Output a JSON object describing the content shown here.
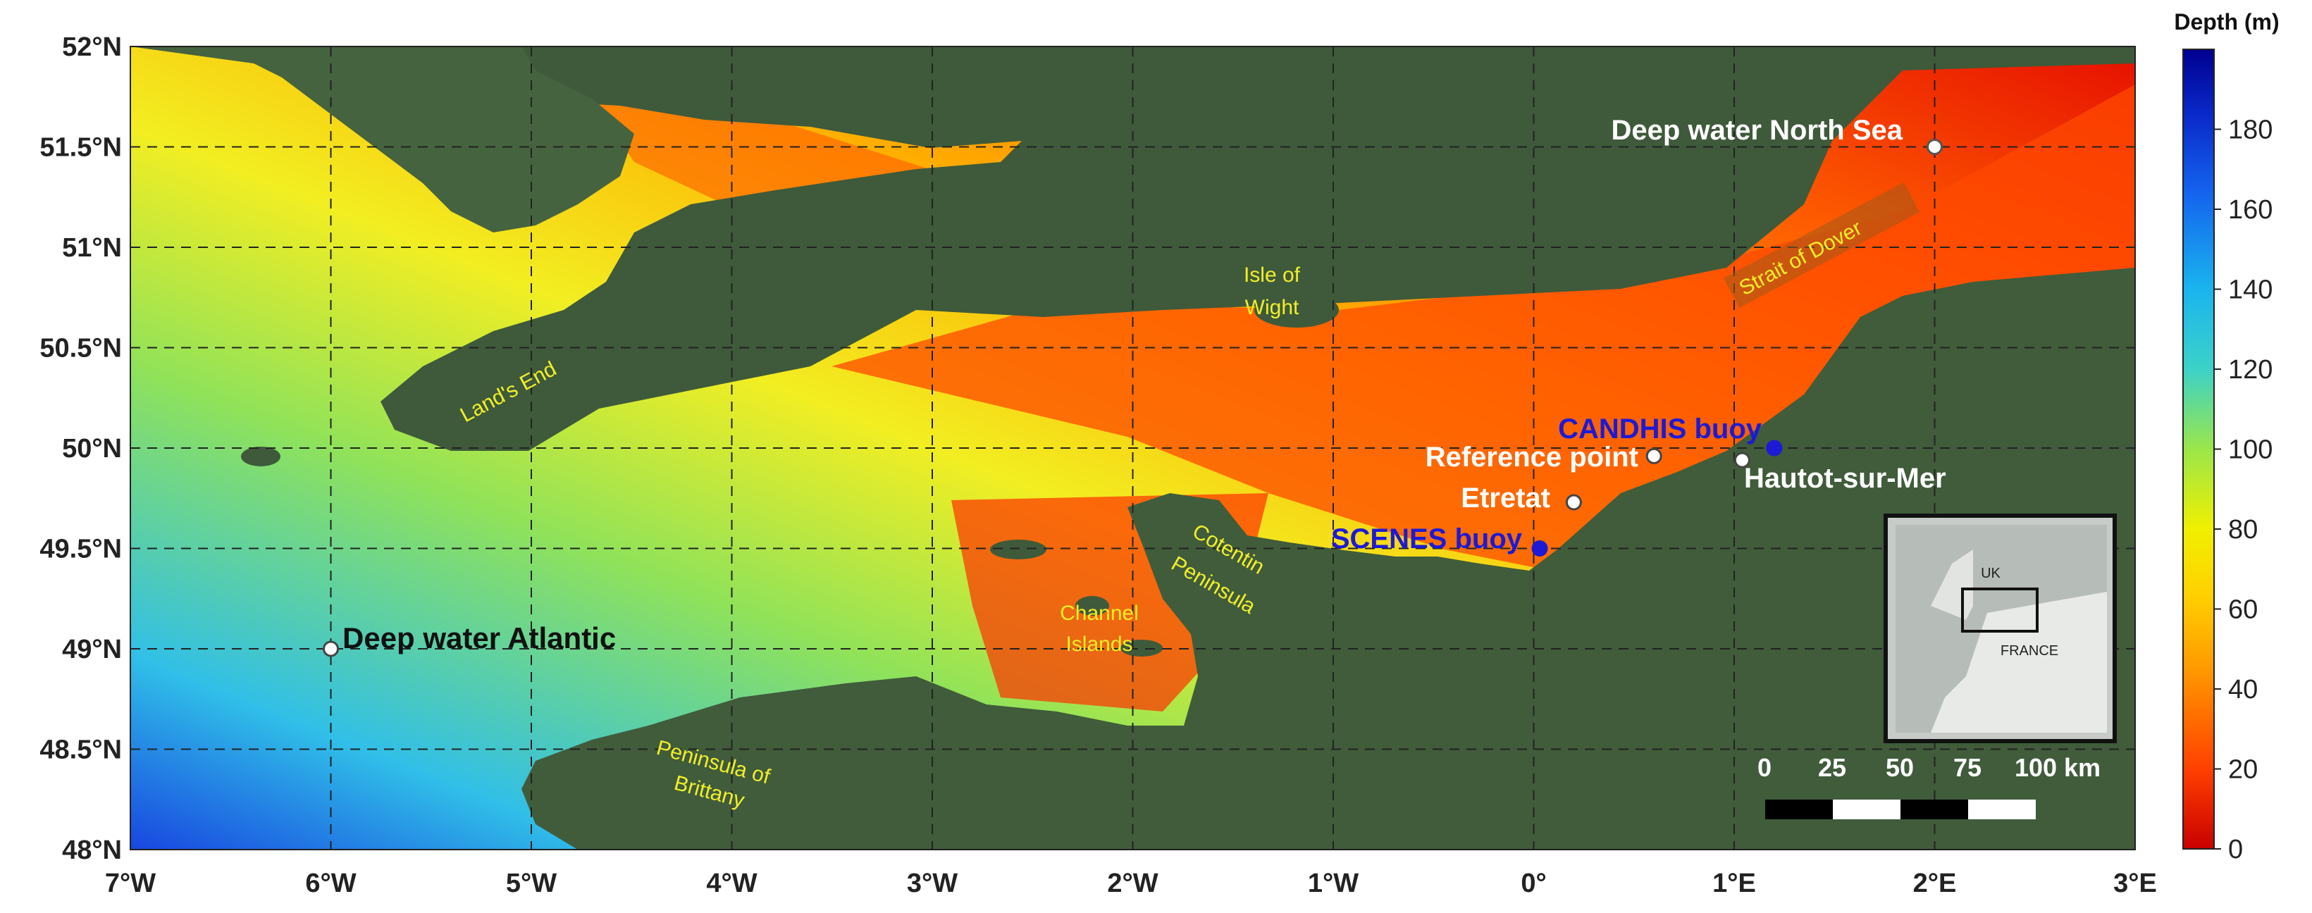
{
  "map": {
    "axes": {
      "x_ticks": [
        "7°W",
        "6°W",
        "5°W",
        "4°W",
        "3°W",
        "2°W",
        "1°W",
        "0°",
        "1°E",
        "2°E",
        "3°E"
      ],
      "y_ticks": [
        "52°N",
        "51.5°N",
        "51°N",
        "50.5°N",
        "50°N",
        "49.5°N",
        "49°N",
        "48.5°N",
        "48°N"
      ],
      "lon_range": [
        -7,
        3
      ],
      "lat_range": [
        48,
        52
      ]
    },
    "colorbar": {
      "title": "Depth (m)",
      "ticks": [
        "0",
        "20",
        "40",
        "60",
        "80",
        "100",
        "120",
        "140",
        "160",
        "180"
      ],
      "range": [
        0,
        200
      ],
      "colors": [
        "#d40000",
        "#ff5a00",
        "#ffb400",
        "#f0f000",
        "#9be64a",
        "#3cd2c8",
        "#1aa0ee",
        "#1464ee",
        "#0a1eb4",
        "#000080"
      ]
    },
    "geo_labels": {
      "lands_end": "Land's End",
      "isle_of_wight_1": "Isle of",
      "isle_of_wight_2": "Wight",
      "strait_of_dover": "Strait of Dover",
      "cotentin_1": "Cotentin",
      "cotentin_2": "Peninsula",
      "channel_islands_1": "Channel",
      "channel_islands_2": "Islands",
      "brittany_1": "Peninsula of",
      "brittany_2": "Brittany"
    },
    "points": {
      "deep_water_north_sea": {
        "label": "Deep water North Sea",
        "lon": 2.0,
        "lat": 51.5
      },
      "candhis_buoy": {
        "label": "CANDHIS buoy",
        "lon": 1.2,
        "lat": 50.0
      },
      "reference_point": {
        "label": "Reference point",
        "lon": 0.6,
        "lat": 49.96
      },
      "hautot_sur_mer": {
        "label": "Hautot-sur-Mer",
        "lon": 1.04,
        "lat": 49.94
      },
      "etretat": {
        "label": "Etretat",
        "lon": 0.2,
        "lat": 49.73
      },
      "scenes_buoy": {
        "label": "SCENES buoy",
        "lon": 0.03,
        "lat": 49.5
      },
      "deep_water_atlantic": {
        "label": "Deep water Atlantic",
        "lon": -6.0,
        "lat": 49.0
      }
    },
    "inset": {
      "uk": "UK",
      "france": "FRANCE"
    },
    "scale_bar": {
      "labels": [
        "0",
        "25",
        "50",
        "75",
        "100 km"
      ]
    }
  }
}
